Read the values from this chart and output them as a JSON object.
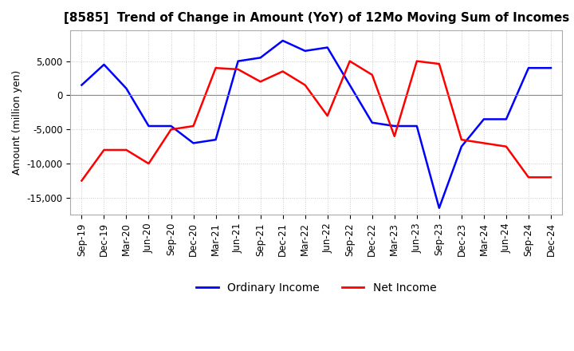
{
  "title": "[8585]  Trend of Change in Amount (YoY) of 12Mo Moving Sum of Incomes",
  "ylabel": "Amount (million yen)",
  "ylim": [
    -17500,
    9500
  ],
  "yticks": [
    5000,
    0,
    -5000,
    -10000,
    -15000
  ],
  "background_color": "#ffffff",
  "grid_color": "#c8c8c8",
  "ordinary_income_color": "#0000ff",
  "net_income_color": "#ff0000",
  "legend_labels": [
    "Ordinary Income",
    "Net Income"
  ],
  "x_labels": [
    "Sep-19",
    "Dec-19",
    "Mar-20",
    "Jun-20",
    "Sep-20",
    "Dec-20",
    "Mar-21",
    "Jun-21",
    "Sep-21",
    "Dec-21",
    "Mar-22",
    "Jun-22",
    "Sep-22",
    "Dec-22",
    "Mar-23",
    "Jun-23",
    "Sep-23",
    "Dec-23",
    "Mar-24",
    "Jun-24",
    "Sep-24",
    "Dec-24"
  ],
  "ordinary_income": [
    1500,
    4500,
    1000,
    -4500,
    -4500,
    -7000,
    -6500,
    5000,
    5500,
    8000,
    6500,
    7000,
    1500,
    -4000,
    -4500,
    -4500,
    -16500,
    -7500,
    -3500,
    -3500,
    4000,
    4000
  ],
  "net_income": [
    -12500,
    -8000,
    -8000,
    -10000,
    -5000,
    -4500,
    4000,
    3800,
    2000,
    3500,
    1500,
    -3000,
    5000,
    3000,
    -6000,
    5000,
    4600,
    -6500,
    -7000,
    -7500,
    -12000,
    -12000
  ]
}
